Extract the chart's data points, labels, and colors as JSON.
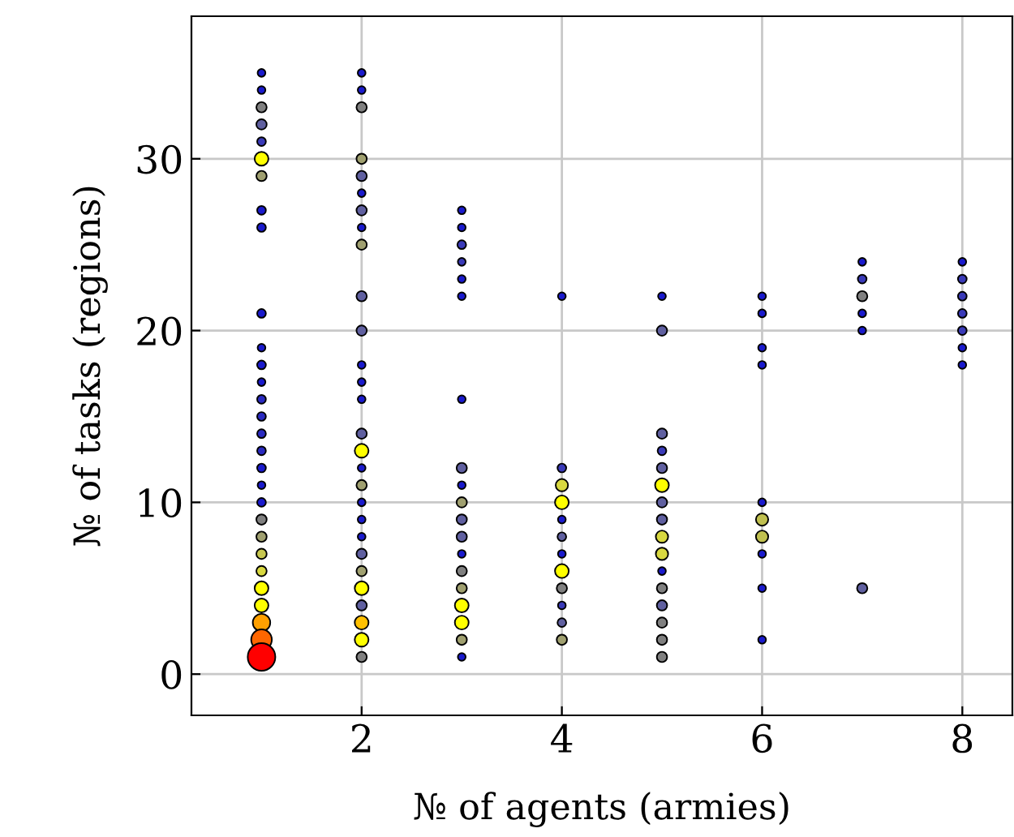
{
  "chart_data": {
    "type": "bubble",
    "xlabel": "№ of agents (armies)",
    "ylabel": "№ of tasks (regions)",
    "xlim": [
      0.3,
      8.5
    ],
    "ylim": [
      -2.4,
      38.3
    ],
    "xticks": [
      2,
      4,
      6,
      8
    ],
    "yticks": [
      0,
      10,
      20,
      30
    ],
    "grid": true,
    "marker": "circle",
    "legend": false,
    "series": [
      {
        "x": [
          1,
          1,
          1,
          1,
          1,
          1,
          1,
          1,
          1,
          1,
          1,
          1,
          1,
          1,
          1,
          1,
          1,
          1,
          1,
          1,
          1,
          1,
          1,
          1,
          1,
          1,
          1,
          1,
          1,
          2,
          2,
          2,
          2,
          2,
          2,
          2,
          2,
          2,
          2,
          2,
          2,
          2,
          2,
          2,
          2,
          2,
          2,
          2,
          2,
          2,
          2,
          2,
          2,
          2,
          2,
          2,
          2,
          3,
          3,
          3,
          3,
          3,
          3,
          3,
          3,
          3,
          3,
          3,
          3,
          3,
          3,
          3,
          3,
          3,
          3,
          3,
          4,
          4,
          4,
          4,
          4,
          4,
          4,
          4,
          4,
          4,
          4,
          4,
          5,
          5,
          5,
          5,
          5,
          5,
          5,
          5,
          5,
          5,
          5,
          5,
          5,
          5,
          5,
          5,
          6,
          6,
          6,
          6,
          6,
          6,
          6,
          6,
          6,
          6,
          7,
          7,
          7,
          7,
          7,
          7,
          8,
          8,
          8,
          8,
          8,
          8,
          8
        ],
        "values": [
          35,
          34,
          33,
          32,
          31,
          30,
          29,
          27,
          26,
          21,
          19,
          18,
          17,
          16,
          15,
          14,
          13,
          12,
          11,
          10,
          9,
          8,
          7,
          6,
          5,
          4,
          3,
          2,
          1,
          35,
          34,
          33,
          30,
          29,
          28,
          27,
          26,
          25,
          22,
          20,
          18,
          17,
          16,
          14,
          13,
          12,
          11,
          10,
          9,
          8,
          7,
          6,
          5,
          4,
          3,
          2,
          1,
          27,
          26,
          25,
          24,
          23,
          22,
          16,
          12,
          11,
          10,
          9,
          8,
          7,
          6,
          5,
          4,
          3,
          2,
          1,
          22,
          12,
          11,
          10,
          9,
          8,
          7,
          6,
          5,
          4,
          3,
          2,
          22,
          20,
          14,
          13,
          12,
          11,
          10,
          9,
          8,
          7,
          6,
          5,
          4,
          3,
          2,
          1,
          22,
          21,
          19,
          18,
          10,
          9,
          8,
          7,
          5,
          2,
          24,
          23,
          22,
          21,
          20,
          5,
          24,
          23,
          22,
          21,
          20,
          19,
          18
        ],
        "sizes": [
          0.08,
          0.08,
          0.14,
          0.14,
          0.1,
          0.25,
          0.14,
          0.1,
          0.1,
          0.1,
          0.08,
          0.1,
          0.08,
          0.1,
          0.1,
          0.1,
          0.1,
          0.1,
          0.08,
          0.1,
          0.14,
          0.14,
          0.14,
          0.14,
          0.25,
          0.25,
          0.4,
          0.56,
          1,
          0.08,
          0.08,
          0.14,
          0.14,
          0.14,
          0.08,
          0.14,
          0.08,
          0.14,
          0.14,
          0.14,
          0.08,
          0.08,
          0.08,
          0.14,
          0.25,
          0.08,
          0.14,
          0.08,
          0.08,
          0.08,
          0.14,
          0.14,
          0.25,
          0.14,
          0.25,
          0.25,
          0.14,
          0.08,
          0.08,
          0.1,
          0.08,
          0.08,
          0.08,
          0.08,
          0.14,
          0.08,
          0.14,
          0.14,
          0.14,
          0.08,
          0.14,
          0.14,
          0.25,
          0.25,
          0.14,
          0.08,
          0.08,
          0.1,
          0.2,
          0.25,
          0.08,
          0.1,
          0.08,
          0.25,
          0.14,
          0.08,
          0.1,
          0.14,
          0.08,
          0.14,
          0.14,
          0.1,
          0.14,
          0.25,
          0.14,
          0.14,
          0.2,
          0.2,
          0.08,
          0.14,
          0.14,
          0.14,
          0.14,
          0.14,
          0.08,
          0.08,
          0.08,
          0.08,
          0.08,
          0.2,
          0.2,
          0.08,
          0.08,
          0.08,
          0.08,
          0.1,
          0.14,
          0.08,
          0.08,
          0.14,
          0.08,
          0.1,
          0.1,
          0.1,
          0.1,
          0.08,
          0.08
        ],
        "colors": [
          "#1a1acc",
          "#1a1acc",
          "#808080",
          "#6060a0",
          "#3a3ab8",
          "#ffff00",
          "#a0a070",
          "#1a1acc",
          "#1a1acc",
          "#1a1acc",
          "#1a1acc",
          "#1a1acc",
          "#1a1acc",
          "#2a2ac0",
          "#2a2ac0",
          "#2a2ac0",
          "#2a2ac0",
          "#1a1acc",
          "#1a1acc",
          "#1a1acc",
          "#808080",
          "#a0a070",
          "#c8c850",
          "#d8d840",
          "#ffff00",
          "#ffff00",
          "#ffa000",
          "#ff6600",
          "#ff0000",
          "#1a1acc",
          "#1a1acc",
          "#808080",
          "#a0a070",
          "#6060a0",
          "#1a1acc",
          "#6060a0",
          "#1a1acc",
          "#a0a070",
          "#6060a0",
          "#6060a0",
          "#1a1acc",
          "#1a1acc",
          "#1a1acc",
          "#6060a0",
          "#ffff00",
          "#1a1acc",
          "#a0a070",
          "#1a1acc",
          "#1a1acc",
          "#1a1acc",
          "#6060a0",
          "#a0a070",
          "#ffff00",
          "#6060a0",
          "#ffc000",
          "#ffff00",
          "#808080",
          "#1a1acc",
          "#1a1acc",
          "#3a3ab8",
          "#3a3ab8",
          "#1a1acc",
          "#1a1acc",
          "#1a1acc",
          "#6060a0",
          "#1a1acc",
          "#a0a070",
          "#6060a0",
          "#6060a0",
          "#1a1acc",
          "#808080",
          "#a0a070",
          "#ffff00",
          "#ffff00",
          "#a0a070",
          "#1a1acc",
          "#1a1acc",
          "#3a3ab8",
          "#d8d840",
          "#ffff00",
          "#1a1acc",
          "#6060a0",
          "#1a1acc",
          "#ffff00",
          "#808080",
          "#3a3ab8",
          "#6060a0",
          "#a0a070",
          "#1a1acc",
          "#6060a0",
          "#6060a0",
          "#3a3ab8",
          "#6060a0",
          "#ffff00",
          "#6060a0",
          "#6060a0",
          "#d8d840",
          "#d8d840",
          "#1a1acc",
          "#808080",
          "#6060a0",
          "#808080",
          "#808080",
          "#808080",
          "#1a1acc",
          "#1a1acc",
          "#1a1acc",
          "#1a1acc",
          "#1a1acc",
          "#c0c050",
          "#c0c050",
          "#1a1acc",
          "#1a1acc",
          "#1a1acc",
          "#1a1acc",
          "#3a3ab8",
          "#808080",
          "#1a1acc",
          "#1a1acc",
          "#6060a0",
          "#1a1acc",
          "#3a3ab8",
          "#3a3ab8",
          "#3a3ab8",
          "#3a3ab8",
          "#1a1acc",
          "#1a1acc"
        ]
      }
    ]
  }
}
